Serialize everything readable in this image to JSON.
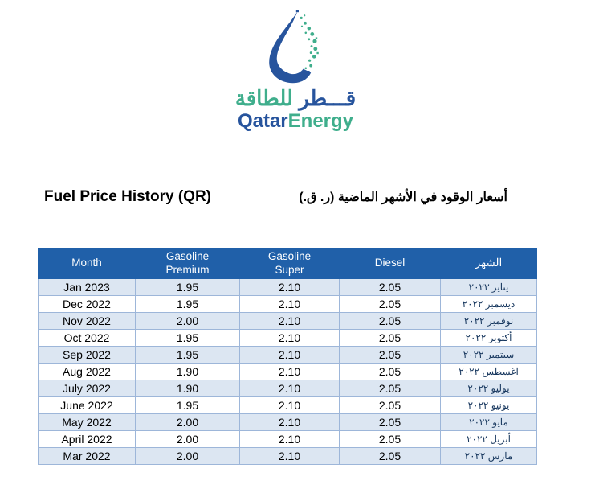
{
  "logo": {
    "icon": "qatarenergy-water-drop-icon",
    "arabic_qatar": "قـــطر",
    "arabic_energy": "للطاقة",
    "latin_qatar": "Qatar",
    "latin_energy": "Energy"
  },
  "titles": {
    "english": "Fuel Price History (QR)",
    "arabic": "أسعار الوقود في الأشهر الماضية (ر. ق.)"
  },
  "table": {
    "columns": [
      "Month",
      "Gasoline\nPremium",
      "Gasoline\nSuper",
      "Diesel",
      "الشهر"
    ],
    "rows": [
      {
        "month": "Jan 2023",
        "gasoline_premium": "1.95",
        "gasoline_super": "2.10",
        "diesel": "2.05",
        "month_arabic": "يناير ٢٠٢٣"
      },
      {
        "month": "Dec 2022",
        "gasoline_premium": "1.95",
        "gasoline_super": "2.10",
        "diesel": "2.05",
        "month_arabic": "ديسمبر ٢٠٢٢"
      },
      {
        "month": "Nov 2022",
        "gasoline_premium": "2.00",
        "gasoline_super": "2.10",
        "diesel": "2.05",
        "month_arabic": "نوفمبر ٢٠٢٢"
      },
      {
        "month": "Oct 2022",
        "gasoline_premium": "1.95",
        "gasoline_super": "2.10",
        "diesel": "2.05",
        "month_arabic": "أكتوبر ٢٠٢٢"
      },
      {
        "month": "Sep 2022",
        "gasoline_premium": "1.95",
        "gasoline_super": "2.10",
        "diesel": "2.05",
        "month_arabic": "سبتمبر ٢٠٢٢"
      },
      {
        "month": "Aug 2022",
        "gasoline_premium": "1.90",
        "gasoline_super": "2.10",
        "diesel": "2.05",
        "month_arabic": "اغسطس ٢٠٢٢"
      },
      {
        "month": "July 2022",
        "gasoline_premium": "1.90",
        "gasoline_super": "2.10",
        "diesel": "2.05",
        "month_arabic": "يوليو ٢٠٢٢"
      },
      {
        "month": "June 2022",
        "gasoline_premium": "1.95",
        "gasoline_super": "2.10",
        "diesel": "2.05",
        "month_arabic": "يونيو ٢٠٢٢"
      },
      {
        "month": "May 2022",
        "gasoline_premium": "2.00",
        "gasoline_super": "2.10",
        "diesel": "2.05",
        "month_arabic": "مايو ٢٠٢٢"
      },
      {
        "month": "April 2022",
        "gasoline_premium": "2.00",
        "gasoline_super": "2.10",
        "diesel": "2.05",
        "month_arabic": "أبريل ٢٠٢٢"
      },
      {
        "month": "Mar 2022",
        "gasoline_premium": "2.00",
        "gasoline_super": "2.10",
        "diesel": "2.05",
        "month_arabic": "مارس ٢٠٢٢"
      }
    ]
  },
  "colors": {
    "brand_blue": "#27549D",
    "brand_green": "#3FAE8C",
    "table_header_bg": "#2060A9",
    "table_alt_row_bg": "#DCE6F2",
    "table_border": "#9DB6D9",
    "arabic_cell_text": "#17375E"
  }
}
